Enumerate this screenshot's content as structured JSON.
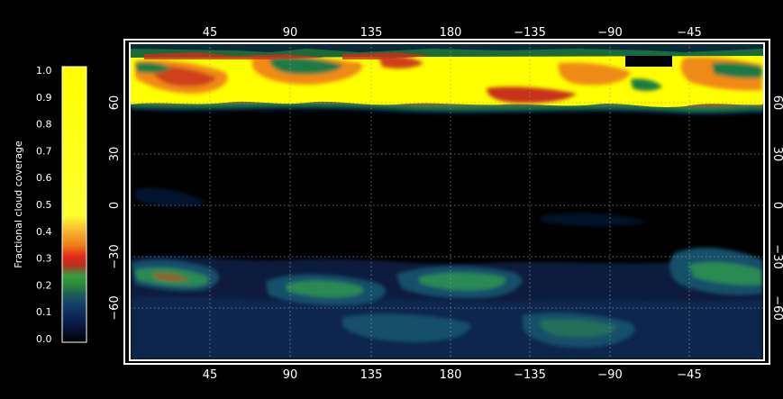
{
  "map": {
    "colorbar_title": "Fractional cloud coverage",
    "colorbar_ticks": [
      "1.0",
      "0.9",
      "0.8",
      "0.7",
      "0.6",
      "0.5",
      "0.4",
      "0.3",
      "0.2",
      "0.1",
      "0.0"
    ],
    "lon_ticks_top": [
      "45",
      "90",
      "135",
      "180",
      "−135",
      "−90",
      "−45"
    ],
    "lon_ticks_bottom": [
      "45",
      "90",
      "135",
      "180",
      "−135",
      "−90",
      "−45"
    ],
    "lat_ticks_left": [
      "60",
      "30",
      "0",
      "−30",
      "−60"
    ],
    "lat_ticks_right": [
      "60",
      "30",
      "0",
      "−30",
      "−60"
    ],
    "colors": {
      "background": "#000000",
      "frame": "#ffffff",
      "grid": "#bbbbbb",
      "low": "#051030",
      "mid_low": "#0f3a5c",
      "mid": "#1f8a4a",
      "mid_high": "#c83018",
      "high": "#f08a18",
      "top": "#ffff00"
    }
  }
}
